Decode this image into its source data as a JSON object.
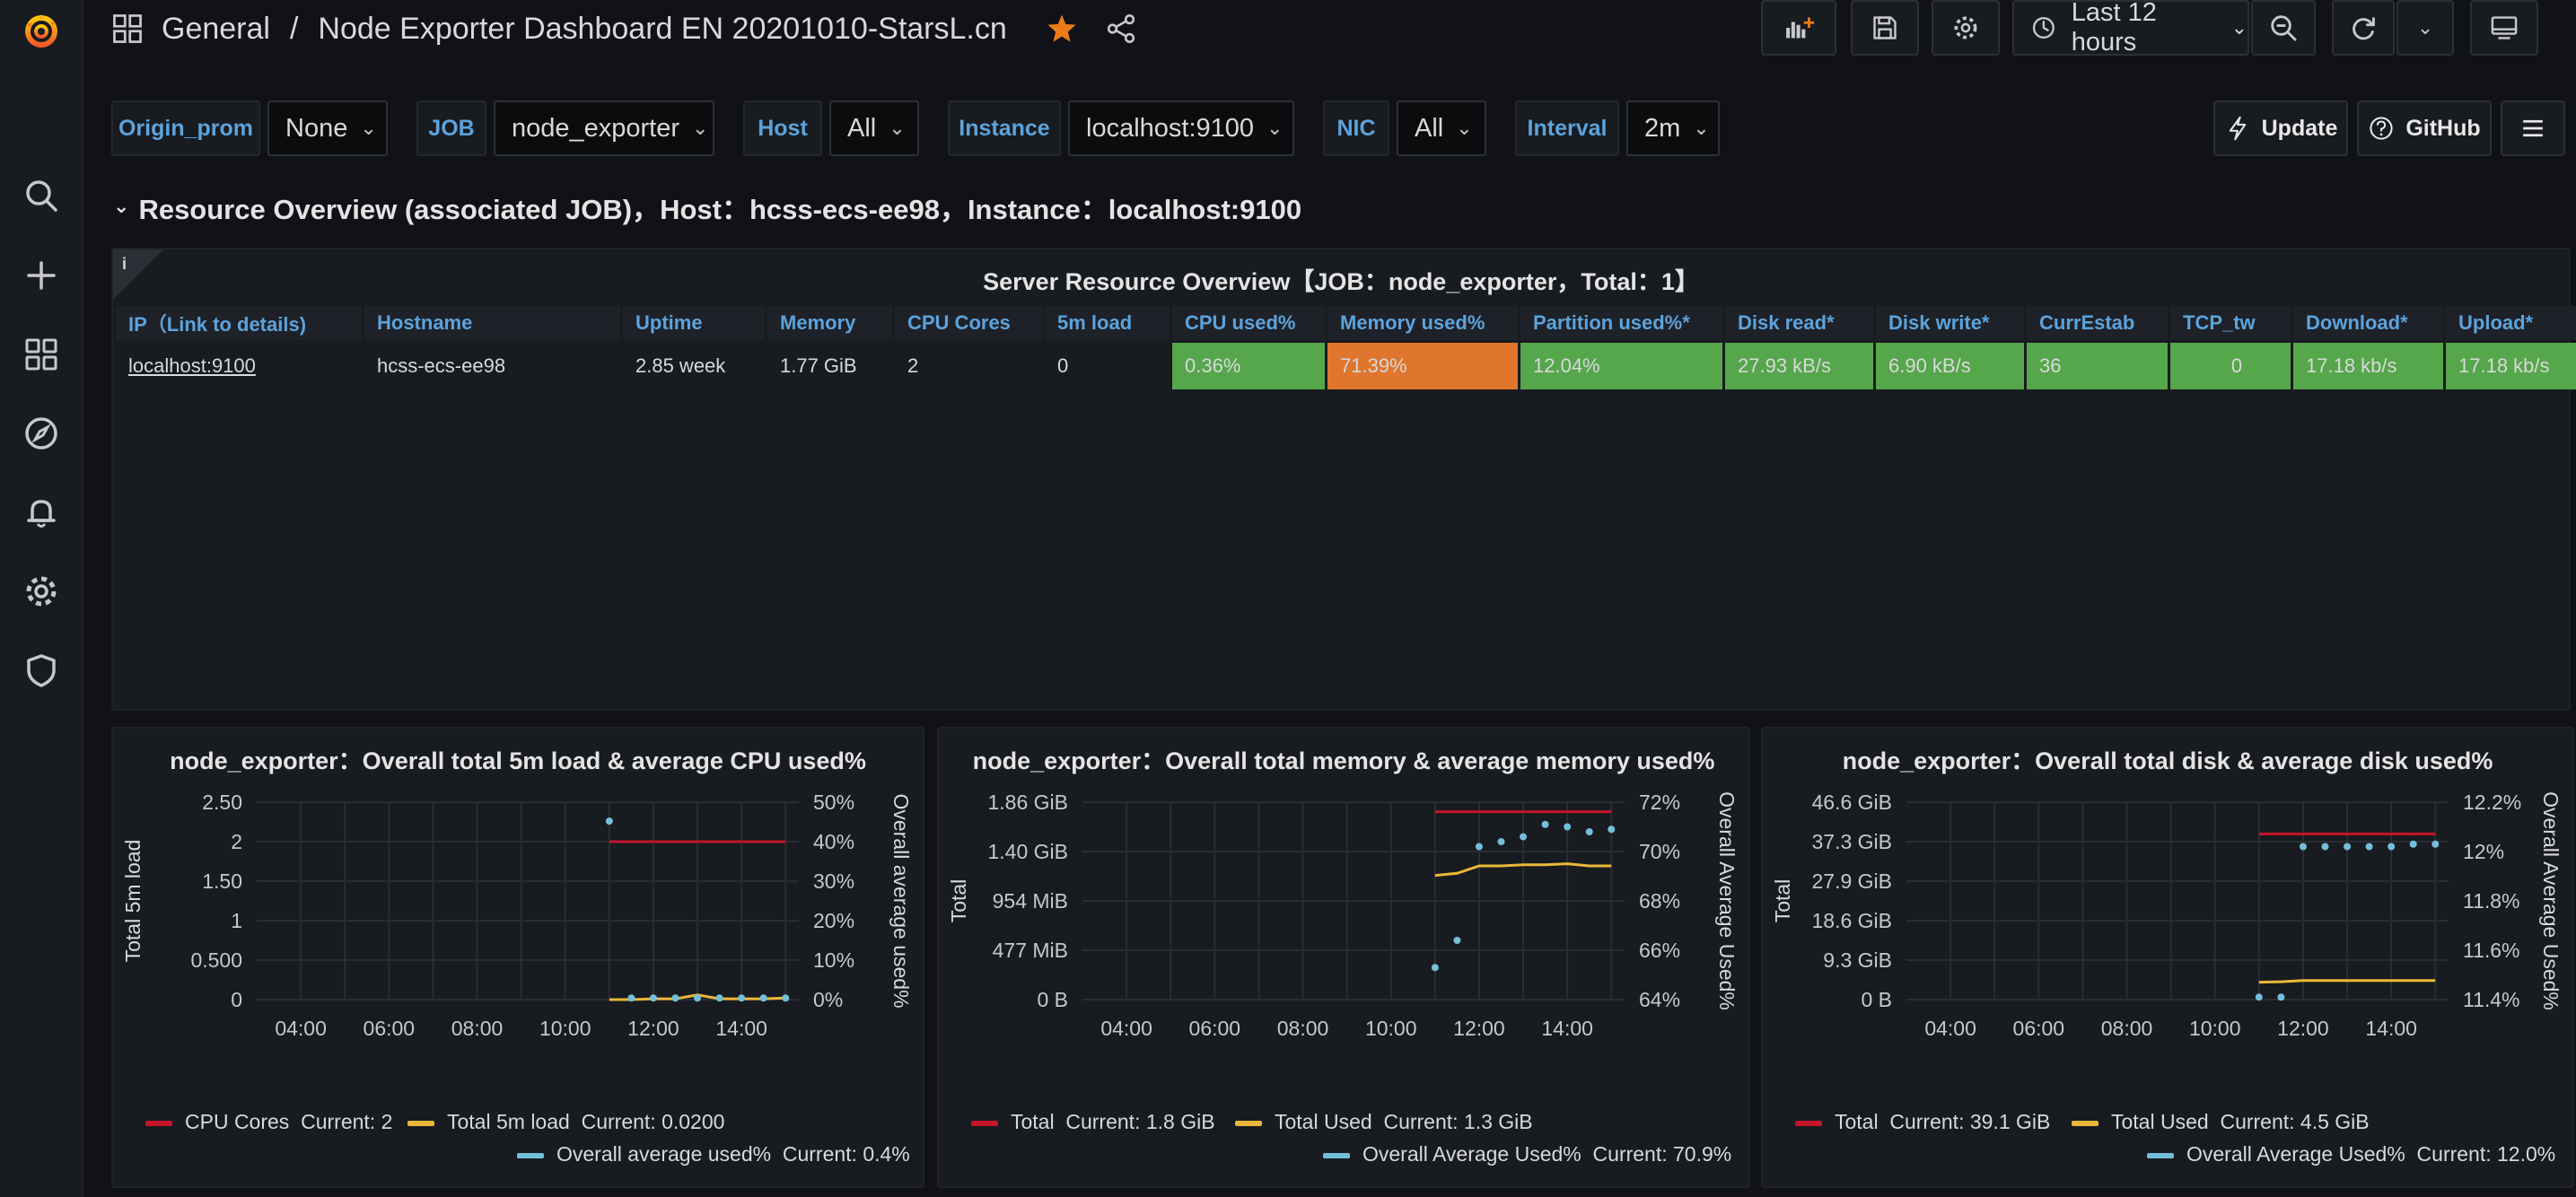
{
  "nav": {
    "section": "General",
    "separator": "/",
    "dashboard_title": "Node Exporter Dashboard EN 20201010-StarsL.cn",
    "time_range": "Last 12 hours"
  },
  "variables": [
    {
      "label": "Origin_prom",
      "value": "None"
    },
    {
      "label": "JOB",
      "value": "node_exporter"
    },
    {
      "label": "Host",
      "value": "All"
    },
    {
      "label": "Instance",
      "value": "localhost:9100"
    },
    {
      "label": "NIC",
      "value": "All"
    },
    {
      "label": "Interval",
      "value": "2m"
    }
  ],
  "links": {
    "update": "Update",
    "github": "GitHub"
  },
  "row_title": "Resource Overview (associated JOB)，Host：hcss-ecs-ee98，Instance：localhost:9100",
  "server_table": {
    "title": "Server Resource Overview【JOB：node_exporter，Total：1】",
    "info_icon": "i",
    "columns": [
      "IP（Link to details)",
      "Hostname",
      "Uptime",
      "Memory",
      "CPU Cores",
      "5m load",
      "CPU used%",
      "Memory used%",
      "Partition used%*",
      "Disk read*",
      "Disk write*",
      "CurrEstab",
      "TCP_tw",
      "Download*",
      "Upload*"
    ],
    "rows": [
      [
        "localhost:9100",
        "hcss-ecs-ee98",
        "2.85 week",
        "1.77 GiB",
        "2",
        "0",
        "0.36%",
        "71.39%",
        "12.04%",
        "27.93 kB/s",
        "6.90 kB/s",
        "36",
        "0",
        "17.18 kb/s",
        "17.18 kb/s"
      ]
    ],
    "colors": {
      "green": "#56a64b",
      "orange": "#e0752d"
    }
  },
  "chart_data": [
    {
      "type": "line",
      "title": "node_exporter：Overall total 5m load & average CPU used%",
      "ylabel": "Total 5m load",
      "y2label": "Overall average used%",
      "xticks": [
        "04:00",
        "06:00",
        "08:00",
        "10:00",
        "12:00",
        "14:00"
      ],
      "yticks": [
        "0",
        "0.500",
        "1",
        "1.50",
        "2",
        "2.50"
      ],
      "y2ticks": [
        "0%",
        "10%",
        "20%",
        "30%",
        "40%",
        "50%"
      ],
      "ylim": [
        0,
        2.5
      ],
      "y2lim": [
        0,
        50
      ],
      "xlim": [
        3,
        15.3
      ],
      "series": [
        {
          "name": "CPU Cores",
          "legend_value": "Current: 2",
          "color": "#c4162a",
          "axis": "left",
          "style": "line",
          "x": [
            11.0,
            15.0
          ],
          "y": [
            2,
            2
          ]
        },
        {
          "name": "Total 5m load",
          "legend_value": "Current: 0.0200",
          "color": "#eab839",
          "axis": "left",
          "style": "line",
          "x": [
            11.0,
            11.5,
            12.0,
            12.5,
            13.0,
            13.5,
            14.0,
            14.5,
            15.0
          ],
          "y": [
            0.0,
            0.0,
            0.01,
            0.01,
            0.06,
            0.01,
            0.01,
            0.01,
            0.02
          ]
        },
        {
          "name": "Overall average used%",
          "legend_value": "Current: 0.4%",
          "color": "#73bfd9",
          "axis": "right",
          "style": "points",
          "x": [
            11.0,
            11.5,
            12.0,
            12.5,
            13.0,
            13.5,
            14.0,
            14.5,
            15.0
          ],
          "y": [
            45.2,
            0.4,
            0.4,
            0.4,
            0.4,
            0.4,
            0.4,
            0.4,
            0.4
          ]
        }
      ]
    },
    {
      "type": "line",
      "title": "node_exporter：Overall total memory & average memory used%",
      "ylabel": "Total",
      "y2label": "Overall Average Used%",
      "xticks": [
        "04:00",
        "06:00",
        "08:00",
        "10:00",
        "12:00",
        "14:00"
      ],
      "yticks": [
        "0 B",
        "477 MiB",
        "954 MiB",
        "1.40 GiB",
        "1.86 GiB"
      ],
      "y2ticks": [
        "64%",
        "66%",
        "68%",
        "70%",
        "72%"
      ],
      "ylim": [
        0,
        1.86
      ],
      "y2lim": [
        64,
        72
      ],
      "xlim": [
        3,
        15.3
      ],
      "series": [
        {
          "name": "Total",
          "legend_value": "Current: 1.8 GiB",
          "color": "#c4162a",
          "axis": "left",
          "style": "line",
          "x": [
            11.0,
            15.0
          ],
          "y": [
            1.77,
            1.77
          ]
        },
        {
          "name": "Total Used",
          "legend_value": "Current: 1.3 GiB",
          "color": "#eab839",
          "axis": "left",
          "style": "line",
          "x": [
            11.0,
            11.5,
            12.0,
            12.5,
            13.0,
            13.5,
            14.0,
            14.5,
            15.0
          ],
          "y": [
            1.17,
            1.19,
            1.26,
            1.26,
            1.27,
            1.27,
            1.28,
            1.26,
            1.26
          ]
        },
        {
          "name": "Overall Average Used%",
          "legend_value": "Current: 70.9%",
          "color": "#73bfd9",
          "axis": "right",
          "style": "points",
          "x": [
            11.0,
            11.5,
            12.0,
            12.5,
            13.0,
            13.5,
            14.0,
            14.5,
            15.0
          ],
          "y": [
            65.3,
            66.4,
            70.2,
            70.4,
            70.6,
            71.1,
            71.0,
            70.8,
            70.9
          ]
        }
      ]
    },
    {
      "type": "line",
      "title": "node_exporter：Overall total disk & average disk used%",
      "ylabel": "Total",
      "y2label": "Overall Average Used%",
      "xticks": [
        "04:00",
        "06:00",
        "08:00",
        "10:00",
        "12:00",
        "14:00"
      ],
      "yticks": [
        "0 B",
        "9.3 GiB",
        "18.6 GiB",
        "27.9 GiB",
        "37.3 GiB",
        "46.6 GiB"
      ],
      "y2ticks": [
        "11.4%",
        "11.6%",
        "11.8%",
        "12%",
        "12.2%"
      ],
      "ylim": [
        0,
        46.6
      ],
      "y2lim": [
        11.4,
        12.2
      ],
      "xlim": [
        3,
        15.3
      ],
      "series": [
        {
          "name": "Total",
          "legend_value": "Current: 39.1 GiB",
          "color": "#c4162a",
          "axis": "left",
          "style": "line",
          "x": [
            11.0,
            15.0
          ],
          "y": [
            39.1,
            39.1
          ]
        },
        {
          "name": "Total Used",
          "legend_value": "Current: 4.5 GiB",
          "color": "#eab839",
          "axis": "left",
          "style": "line",
          "x": [
            11.0,
            11.5,
            12.0,
            12.5,
            13.0,
            13.5,
            14.0,
            14.5,
            15.0
          ],
          "y": [
            4.1,
            4.2,
            4.5,
            4.5,
            4.5,
            4.5,
            4.5,
            4.5,
            4.5
          ]
        },
        {
          "name": "Overall Average Used%",
          "legend_value": "Current: 12.0%",
          "color": "#73bfd9",
          "axis": "right",
          "style": "points",
          "x": [
            11.0,
            11.5,
            12.0,
            12.5,
            13.0,
            13.5,
            14.0,
            14.5,
            15.0
          ],
          "y": [
            11.41,
            11.41,
            12.02,
            12.02,
            12.02,
            12.02,
            12.02,
            12.03,
            12.03
          ]
        }
      ]
    }
  ]
}
